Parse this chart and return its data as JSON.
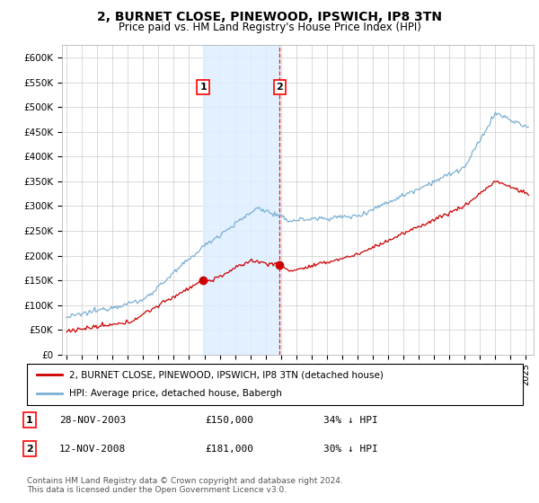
{
  "title": "2, BURNET CLOSE, PINEWOOD, IPSWICH, IP8 3TN",
  "subtitle": "Price paid vs. HM Land Registry's House Price Index (HPI)",
  "ylim": [
    0,
    620000
  ],
  "yticks": [
    0,
    50000,
    100000,
    150000,
    200000,
    250000,
    300000,
    350000,
    400000,
    450000,
    500000,
    550000,
    600000
  ],
  "ytick_labels": [
    "£0",
    "£50K",
    "£100K",
    "£150K",
    "£200K",
    "£250K",
    "£300K",
    "£350K",
    "£400K",
    "£450K",
    "£500K",
    "£550K",
    "£600K"
  ],
  "sale1_date": "28-NOV-2003",
  "sale1_price": 150000,
  "sale1_pct": "34%",
  "sale2_date": "12-NOV-2008",
  "sale2_price": 181000,
  "sale2_pct": "30%",
  "legend_house": "2, BURNET CLOSE, PINEWOOD, IPSWICH, IP8 3TN (detached house)",
  "legend_hpi": "HPI: Average price, detached house, Babergh",
  "footnote": "Contains HM Land Registry data © Crown copyright and database right 2024.\nThis data is licensed under the Open Government Licence v3.0.",
  "house_color": "#cc0000",
  "hpi_color": "#7ab0d4",
  "shade_color": "#ddeeff",
  "xstart_year": 1995,
  "xend_year": 2025,
  "sale1_t": 2003.917,
  "sale2_t": 2008.917
}
